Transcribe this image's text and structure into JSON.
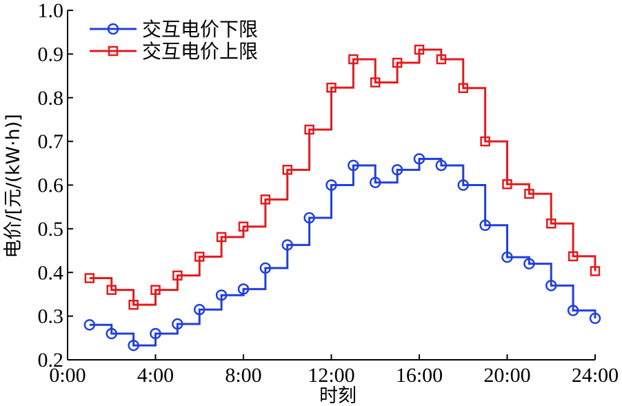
{
  "chart_data": {
    "type": "line",
    "step": "post",
    "xlabel": "时刻",
    "ylabel": "电价/[元/(kW·h)]",
    "xlim": [
      0,
      24
    ],
    "ylim": [
      0.2,
      1.0
    ],
    "x_ticks": [
      0,
      4,
      8,
      12,
      16,
      20,
      24
    ],
    "x_tick_labels": [
      "0:00",
      "4:00",
      "8:00",
      "12:00",
      "16:00",
      "20:00",
      "24:00"
    ],
    "y_ticks": [
      0.2,
      0.3,
      0.4,
      0.5,
      0.6,
      0.7,
      0.8,
      0.9,
      1.0
    ],
    "y_tick_labels": [
      "0.2",
      "0.3",
      "0.4",
      "0.5",
      "0.6",
      "0.7",
      "0.8",
      "0.9",
      "1.0"
    ],
    "grid": false,
    "legend_position": "top-left",
    "x": [
      1,
      2,
      3,
      4,
      5,
      6,
      7,
      8,
      9,
      10,
      11,
      12,
      13,
      14,
      15,
      16,
      17,
      18,
      19,
      20,
      21,
      22,
      23,
      24
    ],
    "series": [
      {
        "name": "交互电价下限",
        "color": "#1f3fe0",
        "marker": "circle",
        "values": [
          0.28,
          0.26,
          0.233,
          0.26,
          0.282,
          0.315,
          0.348,
          0.362,
          0.41,
          0.463,
          0.525,
          0.6,
          0.645,
          0.606,
          0.635,
          0.66,
          0.645,
          0.6,
          0.508,
          0.435,
          0.42,
          0.37,
          0.313,
          0.295
        ]
      },
      {
        "name": "交互电价上限",
        "color": "#e41a1c",
        "marker": "square",
        "values": [
          0.387,
          0.36,
          0.326,
          0.36,
          0.393,
          0.436,
          0.481,
          0.505,
          0.567,
          0.635,
          0.727,
          0.823,
          0.888,
          0.835,
          0.88,
          0.91,
          0.888,
          0.822,
          0.7,
          0.602,
          0.58,
          0.512,
          0.437,
          0.403
        ]
      }
    ]
  }
}
